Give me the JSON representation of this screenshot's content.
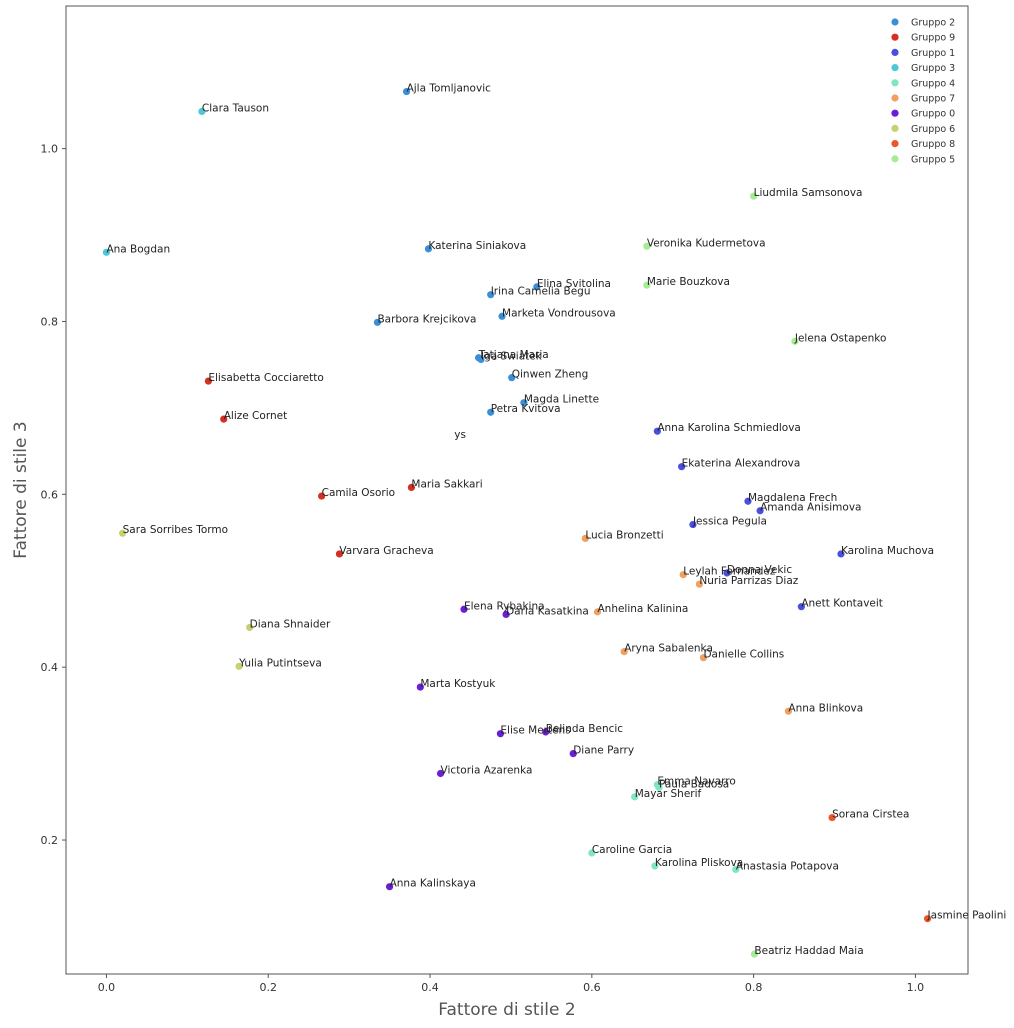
{
  "chart_data": {
    "type": "scatter",
    "title": "",
    "xlabel": "Fattore di stile 2",
    "ylabel": "Fattore di stile 3",
    "xlim": [
      -0.05,
      1.065
    ],
    "ylim": [
      0.045,
      1.165
    ],
    "xticks": [
      "0.0",
      "0.2",
      "0.4",
      "0.6",
      "0.8",
      "1.0"
    ],
    "yticks": [
      "0.2",
      "0.4",
      "0.6",
      "0.8",
      "1.0"
    ],
    "grid": false,
    "legend_position": "top-right",
    "groups": [
      {
        "name": "Gruppo 2",
        "color": "#3a8fd8"
      },
      {
        "name": "Gruppo 9",
        "color": "#d62f24"
      },
      {
        "name": "Gruppo 1",
        "color": "#4a4fe0"
      },
      {
        "name": "Gruppo 3",
        "color": "#4cc8d8"
      },
      {
        "name": "Gruppo 4",
        "color": "#7fe6c0"
      },
      {
        "name": "Gruppo 7",
        "color": "#f0a060"
      },
      {
        "name": "Gruppo 0",
        "color": "#6a1ed8"
      },
      {
        "name": "Gruppo 6",
        "color": "#c8d070"
      },
      {
        "name": "Gruppo 8",
        "color": "#e8582a"
      },
      {
        "name": "Gruppo 5",
        "color": "#a6ec96"
      }
    ],
    "points": [
      {
        "label": "Ajla Tomljanovic",
        "x": 0.371,
        "y": 1.066,
        "group": "Gruppo 2"
      },
      {
        "label": "Clara Tauson",
        "x": 0.118,
        "y": 1.043,
        "group": "Gruppo 3"
      },
      {
        "label": "Liudmila Samsonova",
        "x": 0.8,
        "y": 0.945,
        "group": "Gruppo 5"
      },
      {
        "label": "Ana Bogdan",
        "x": 0.0,
        "y": 0.88,
        "group": "Gruppo 3"
      },
      {
        "label": "Katerina Siniakova",
        "x": 0.398,
        "y": 0.884,
        "group": "Gruppo 2"
      },
      {
        "label": "Veronika Kudermetova",
        "x": 0.668,
        "y": 0.887,
        "group": "Gruppo 5"
      },
      {
        "label": "Elina Svitolina",
        "x": 0.532,
        "y": 0.84,
        "group": "Gruppo 2"
      },
      {
        "label": "Irina Camelia Begu",
        "x": 0.475,
        "y": 0.831,
        "group": "Gruppo 2"
      },
      {
        "label": "Marie Bouzkova",
        "x": 0.668,
        "y": 0.842,
        "group": "Gruppo 5"
      },
      {
        "label": "Marketa Vondrousova",
        "x": 0.489,
        "y": 0.806,
        "group": "Gruppo 2"
      },
      {
        "label": "Barbora Krejcikova",
        "x": 0.335,
        "y": 0.799,
        "group": "Gruppo 2"
      },
      {
        "label": "Jelena Ostapenko",
        "x": 0.851,
        "y": 0.777,
        "group": "Gruppo 5"
      },
      {
        "label": "Tatjana Maria",
        "x": 0.46,
        "y": 0.758,
        "group": "Gruppo 2"
      },
      {
        "label": "Iga Swiatek",
        "x": 0.463,
        "y": 0.756,
        "group": "Gruppo 2"
      },
      {
        "label": "Elisabetta Cocciaretto",
        "x": 0.126,
        "y": 0.731,
        "group": "Gruppo 9"
      },
      {
        "label": "Qinwen Zheng",
        "x": 0.501,
        "y": 0.735,
        "group": "Gruppo 2"
      },
      {
        "label": "Magda Linette",
        "x": 0.516,
        "y": 0.706,
        "group": "Gruppo 2"
      },
      {
        "label": "Alize Cornet",
        "x": 0.145,
        "y": 0.687,
        "group": "Gruppo 9"
      },
      {
        "label": "Petra Kvitova",
        "x": 0.475,
        "y": 0.695,
        "group": "Gruppo 2"
      },
      {
        "label": "Anna Karolina Schmiedlova",
        "x": 0.681,
        "y": 0.673,
        "group": "Gruppo 1"
      },
      {
        "label": "Ekaterina Alexandrova",
        "x": 0.711,
        "y": 0.632,
        "group": "Gruppo 1"
      },
      {
        "label": "Maria Sakkari",
        "x": 0.377,
        "y": 0.608,
        "group": "Gruppo 9"
      },
      {
        "label": "Camila Osorio",
        "x": 0.266,
        "y": 0.598,
        "group": "Gruppo 9"
      },
      {
        "label": "Magdalena Frech",
        "x": 0.793,
        "y": 0.592,
        "group": "Gruppo 1"
      },
      {
        "label": "Amanda Anisimova",
        "x": 0.808,
        "y": 0.581,
        "group": "Gruppo 1"
      },
      {
        "label": "Jessica Pegula",
        "x": 0.725,
        "y": 0.565,
        "group": "Gruppo 1"
      },
      {
        "label": "Sara Sorribes Tormo",
        "x": 0.02,
        "y": 0.555,
        "group": "Gruppo 6"
      },
      {
        "label": "Lucia Bronzetti",
        "x": 0.592,
        "y": 0.549,
        "group": "Gruppo 7"
      },
      {
        "label": "Varvara Gracheva",
        "x": 0.288,
        "y": 0.531,
        "group": "Gruppo 9"
      },
      {
        "label": "Karolina Muchova",
        "x": 0.908,
        "y": 0.531,
        "group": "Gruppo 1"
      },
      {
        "label": "Leylah Fernandez",
        "x": 0.713,
        "y": 0.507,
        "group": "Gruppo 7"
      },
      {
        "label": "Donna Vekic",
        "x": 0.767,
        "y": 0.509,
        "group": "Gruppo 1"
      },
      {
        "label": "Nuria Parrizas Diaz",
        "x": 0.733,
        "y": 0.496,
        "group": "Gruppo 7"
      },
      {
        "label": "Elena Rybakina",
        "x": 0.442,
        "y": 0.467,
        "group": "Gruppo 0"
      },
      {
        "label": "Daria Kasatkina",
        "x": 0.494,
        "y": 0.461,
        "group": "Gruppo 0"
      },
      {
        "label": "Anhelina Kalinina",
        "x": 0.607,
        "y": 0.464,
        "group": "Gruppo 7"
      },
      {
        "label": "Anett Kontaveit",
        "x": 0.859,
        "y": 0.47,
        "group": "Gruppo 1"
      },
      {
        "label": "Diana Shnaider",
        "x": 0.177,
        "y": 0.446,
        "group": "Gruppo 6"
      },
      {
        "label": "Aryna Sabalenka",
        "x": 0.64,
        "y": 0.418,
        "group": "Gruppo 7"
      },
      {
        "label": "Danielle Collins",
        "x": 0.738,
        "y": 0.411,
        "group": "Gruppo 7"
      },
      {
        "label": "Yulia Putintseva",
        "x": 0.164,
        "y": 0.401,
        "group": "Gruppo 6"
      },
      {
        "label": "Marta Kostyuk",
        "x": 0.388,
        "y": 0.377,
        "group": "Gruppo 0"
      },
      {
        "label": "Anna Blinkova",
        "x": 0.843,
        "y": 0.349,
        "group": "Gruppo 7"
      },
      {
        "label": "Elise Mertens",
        "x": 0.487,
        "y": 0.323,
        "group": "Gruppo 0"
      },
      {
        "label": "Belinda Bencic",
        "x": 0.543,
        "y": 0.325,
        "group": "Gruppo 0"
      },
      {
        "label": "Diane Parry",
        "x": 0.577,
        "y": 0.3,
        "group": "Gruppo 0"
      },
      {
        "label": "Victoria Azarenka",
        "x": 0.413,
        "y": 0.277,
        "group": "Gruppo 0"
      },
      {
        "label": "Emma Navarro",
        "x": 0.681,
        "y": 0.264,
        "group": "Gruppo 4"
      },
      {
        "label": "Paula Badosa",
        "x": 0.683,
        "y": 0.261,
        "group": "Gruppo 4"
      },
      {
        "label": "Mayar Sherif",
        "x": 0.653,
        "y": 0.25,
        "group": "Gruppo 4"
      },
      {
        "label": "Sorana Cirstea",
        "x": 0.897,
        "y": 0.226,
        "group": "Gruppo 8"
      },
      {
        "label": "Caroline Garcia",
        "x": 0.6,
        "y": 0.185,
        "group": "Gruppo 4"
      },
      {
        "label": "Karolina Pliskova",
        "x": 0.678,
        "y": 0.17,
        "group": "Gruppo 4"
      },
      {
        "label": "Anastasia Potapova",
        "x": 0.778,
        "y": 0.166,
        "group": "Gruppo 4"
      },
      {
        "label": "Anna Kalinskaya",
        "x": 0.35,
        "y": 0.146,
        "group": "Gruppo 0"
      },
      {
        "label": "Jasmine Paolini",
        "x": 1.015,
        "y": 0.109,
        "group": "Gruppo 8"
      },
      {
        "label": "Beatriz Haddad Maia",
        "x": 0.801,
        "y": 0.068,
        "group": "Gruppo 5"
      }
    ],
    "annotations": [
      {
        "text": "ys",
        "x": 0.43,
        "y": 0.665
      }
    ]
  }
}
